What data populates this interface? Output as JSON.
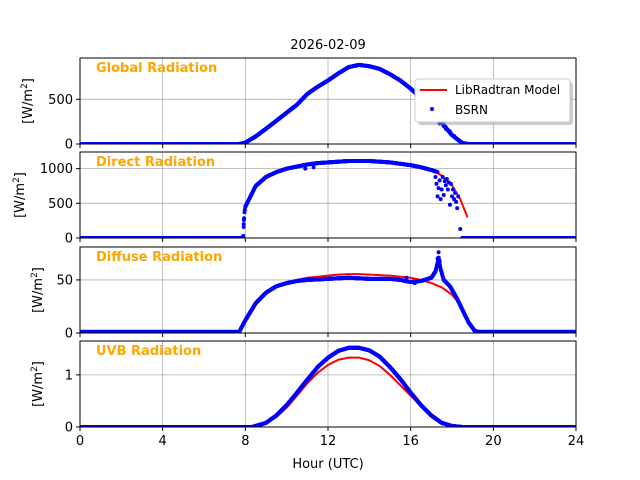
{
  "chart_data": {
    "type": "line",
    "title": "2026-02-09",
    "xlabel": "Hour (UTC)",
    "xlim": [
      0,
      24
    ],
    "xticks": [
      0,
      4,
      8,
      12,
      16,
      20,
      24
    ],
    "xtick_labels": [
      "0",
      "4",
      "8",
      "12",
      "16",
      "20",
      "24"
    ],
    "grid": true,
    "legend": {
      "placement": "upper-right of first panel",
      "entries": [
        {
          "label": "LibRadtran Model",
          "style": "line",
          "color": "#ff0000"
        },
        {
          "label": "BSRN",
          "style": "dots",
          "color": "#0000ff"
        }
      ]
    },
    "panels": [
      {
        "title": "Global Radiation",
        "ylabel": "[W/m2]",
        "ylim": [
          0,
          962
        ],
        "yticks": [
          0,
          500
        ],
        "ytick_labels": [
          "0",
          "500"
        ],
        "model": [
          [
            7.8,
            0
          ],
          [
            8,
            15
          ],
          [
            8.5,
            85
          ],
          [
            9,
            170
          ],
          [
            9.5,
            260
          ],
          [
            10,
            350
          ],
          [
            10.5,
            440
          ],
          [
            11,
            555
          ],
          [
            11.5,
            635
          ],
          [
            12,
            705
          ],
          [
            12.5,
            785
          ],
          [
            13,
            855
          ],
          [
            13.5,
            880
          ],
          [
            14,
            865
          ],
          [
            14.5,
            835
          ],
          [
            15,
            775
          ],
          [
            15.5,
            705
          ],
          [
            16,
            615
          ],
          [
            16.5,
            505
          ],
          [
            17,
            375
          ],
          [
            17.5,
            235
          ],
          [
            18,
            95
          ],
          [
            18.5,
            10
          ],
          [
            18.8,
            0
          ]
        ],
        "bsrn": [
          [
            0,
            0
          ],
          [
            7.7,
            0
          ],
          [
            8,
            15
          ],
          [
            8.5,
            85
          ],
          [
            9,
            170
          ],
          [
            9.5,
            260
          ],
          [
            10,
            350
          ],
          [
            10.5,
            440
          ],
          [
            11,
            560
          ],
          [
            11.5,
            640
          ],
          [
            12,
            710
          ],
          [
            12.5,
            790
          ],
          [
            13,
            860
          ],
          [
            13.5,
            885
          ],
          [
            14,
            870
          ],
          [
            14.5,
            840
          ],
          [
            15,
            780
          ],
          [
            15.5,
            710
          ],
          [
            16,
            620
          ],
          [
            16.5,
            510
          ],
          [
            17,
            380
          ],
          [
            17.5,
            240
          ],
          [
            18,
            100
          ],
          [
            18.5,
            10
          ],
          [
            18.8,
            0
          ],
          [
            24,
            0
          ]
        ],
        "bsrn_scatter": [
          [
            17.4,
            230
          ],
          [
            17.6,
            200
          ],
          [
            17.7,
            170
          ],
          [
            17.9,
            140
          ],
          [
            18.1,
            90
          ]
        ]
      },
      {
        "title": "Direct Radiation",
        "ylabel": "[W/m2]",
        "ylim": [
          0,
          1240
        ],
        "yticks": [
          0,
          500,
          1000
        ],
        "ytick_labels": [
          "0",
          "500",
          "1000"
        ],
        "model": [
          [
            7.95,
            350
          ],
          [
            8,
            450
          ],
          [
            8.5,
            750
          ],
          [
            9,
            880
          ],
          [
            9.5,
            950
          ],
          [
            10,
            1000
          ],
          [
            10.5,
            1030
          ],
          [
            11,
            1060
          ],
          [
            11.5,
            1080
          ],
          [
            12,
            1090
          ],
          [
            12.5,
            1100
          ],
          [
            13,
            1110
          ],
          [
            13.5,
            1110
          ],
          [
            14,
            1110
          ],
          [
            14.5,
            1100
          ],
          [
            15,
            1090
          ],
          [
            15.5,
            1070
          ],
          [
            16,
            1050
          ],
          [
            16.5,
            1020
          ],
          [
            17,
            985
          ],
          [
            17.5,
            900
          ],
          [
            18,
            760
          ],
          [
            18.4,
            560
          ],
          [
            18.75,
            300
          ]
        ],
        "bsrn": [
          [
            0,
            0
          ],
          [
            7.85,
            0
          ],
          [
            7.9,
            30
          ],
          [
            7.95,
            350
          ],
          [
            8,
            450
          ],
          [
            8.5,
            750
          ],
          [
            9,
            880
          ],
          [
            9.5,
            950
          ],
          [
            10,
            1000
          ],
          [
            10.5,
            1030
          ],
          [
            11,
            1060
          ],
          [
            11.5,
            1080
          ],
          [
            12,
            1090
          ],
          [
            12.5,
            1100
          ],
          [
            13,
            1110
          ],
          [
            13.5,
            1110
          ],
          [
            14,
            1110
          ],
          [
            14.5,
            1100
          ],
          [
            15,
            1090
          ],
          [
            15.5,
            1070
          ],
          [
            16,
            1050
          ],
          [
            16.5,
            1020
          ],
          [
            17,
            980
          ],
          [
            17.3,
            950
          ]
        ],
        "bsrn_tail": [
          [
            18.5,
            0
          ],
          [
            24,
            0
          ]
        ],
        "bsrn_scatter": [
          [
            7.92,
            200
          ],
          [
            7.93,
            260
          ],
          [
            10.9,
            1000
          ],
          [
            11.3,
            1020
          ],
          [
            17.25,
            780
          ],
          [
            17.3,
            600
          ],
          [
            17.35,
            720
          ],
          [
            17.4,
            830
          ],
          [
            17.45,
            560
          ],
          [
            17.5,
            700
          ],
          [
            17.55,
            880
          ],
          [
            17.6,
            620
          ],
          [
            17.7,
            760
          ],
          [
            17.75,
            850
          ],
          [
            17.8,
            700
          ],
          [
            17.85,
            800
          ],
          [
            17.9,
            480
          ],
          [
            17.95,
            780
          ],
          [
            18.0,
            600
          ],
          [
            18.05,
            700
          ],
          [
            18.1,
            560
          ],
          [
            18.15,
            650
          ],
          [
            18.2,
            520
          ],
          [
            18.25,
            430
          ],
          [
            18.3,
            600
          ],
          [
            18.4,
            130
          ],
          [
            17.65,
            820
          ],
          [
            17.2,
            880
          ]
        ]
      },
      {
        "title": "Diffuse Radiation",
        "ylabel": "[W/m2]",
        "ylim": [
          0,
          81
        ],
        "yticks": [
          0,
          50
        ],
        "ytick_labels": [
          "0",
          "50"
        ],
        "model": [
          [
            7.7,
            0
          ],
          [
            8,
            12
          ],
          [
            8.5,
            28
          ],
          [
            9,
            38
          ],
          [
            9.5,
            44
          ],
          [
            10,
            48
          ],
          [
            10.5,
            50
          ],
          [
            11,
            52
          ],
          [
            11.5,
            53
          ],
          [
            12,
            54
          ],
          [
            12.5,
            55
          ],
          [
            13,
            55.5
          ],
          [
            13.5,
            55.5
          ],
          [
            14,
            55
          ],
          [
            14.5,
            54.5
          ],
          [
            15,
            54
          ],
          [
            15.5,
            53
          ],
          [
            16,
            52
          ],
          [
            16.5,
            50
          ],
          [
            17,
            47
          ],
          [
            17.5,
            43
          ],
          [
            18,
            36
          ],
          [
            18.3,
            29
          ],
          [
            18.6,
            17
          ],
          [
            19,
            3
          ],
          [
            19.2,
            0
          ]
        ],
        "bsrn": [
          [
            0,
            1
          ],
          [
            7.7,
            1
          ],
          [
            8,
            12
          ],
          [
            8.5,
            28
          ],
          [
            9,
            38
          ],
          [
            9.5,
            44
          ],
          [
            10,
            47
          ],
          [
            10.5,
            49
          ],
          [
            11,
            50
          ],
          [
            11.5,
            50.5
          ],
          [
            12,
            51
          ],
          [
            12.5,
            51.5
          ],
          [
            13,
            52
          ],
          [
            13.5,
            51.5
          ],
          [
            14,
            51
          ],
          [
            14.5,
            51
          ],
          [
            15,
            51
          ],
          [
            15.5,
            50
          ],
          [
            16,
            48
          ],
          [
            16.5,
            49
          ],
          [
            17,
            52
          ],
          [
            17.2,
            58
          ],
          [
            17.3,
            66
          ],
          [
            17.35,
            72
          ],
          [
            17.45,
            60
          ],
          [
            17.6,
            50
          ],
          [
            17.9,
            44
          ],
          [
            18.2,
            34
          ],
          [
            18.5,
            22
          ],
          [
            18.8,
            10
          ],
          [
            19.1,
            2
          ],
          [
            19.3,
            1
          ],
          [
            24,
            1
          ]
        ],
        "bsrn_scatter": [
          [
            17.35,
            76
          ],
          [
            17.3,
            70
          ],
          [
            17.4,
            68
          ],
          [
            16.2,
            47
          ],
          [
            15.8,
            52
          ]
        ]
      },
      {
        "title": "UVB Radiation",
        "ylabel": "[W/m2]",
        "ylim": [
          0,
          1.65
        ],
        "yticks": [
          0,
          1
        ],
        "ytick_labels": [
          "0",
          "1"
        ],
        "model": [
          [
            8,
            0
          ],
          [
            8.5,
            0.02
          ],
          [
            9,
            0.07
          ],
          [
            9.5,
            0.19
          ],
          [
            10,
            0.37
          ],
          [
            10.5,
            0.6
          ],
          [
            11,
            0.84
          ],
          [
            11.5,
            1.04
          ],
          [
            12,
            1.19
          ],
          [
            12.5,
            1.29
          ],
          [
            13,
            1.33
          ],
          [
            13.5,
            1.33
          ],
          [
            14,
            1.28
          ],
          [
            14.5,
            1.17
          ],
          [
            15,
            1.0
          ],
          [
            15.5,
            0.8
          ],
          [
            16,
            0.6
          ],
          [
            16.5,
            0.4
          ],
          [
            17,
            0.22
          ],
          [
            17.5,
            0.09
          ],
          [
            18,
            0.02
          ],
          [
            18.5,
            0
          ]
        ],
        "bsrn": [
          [
            0,
            0
          ],
          [
            8.3,
            0
          ],
          [
            8.5,
            0.02
          ],
          [
            9,
            0.08
          ],
          [
            9.5,
            0.22
          ],
          [
            10,
            0.42
          ],
          [
            10.5,
            0.66
          ],
          [
            11,
            0.91
          ],
          [
            11.5,
            1.15
          ],
          [
            12,
            1.33
          ],
          [
            12.5,
            1.46
          ],
          [
            13,
            1.52
          ],
          [
            13.5,
            1.52
          ],
          [
            14,
            1.47
          ],
          [
            14.5,
            1.35
          ],
          [
            15,
            1.15
          ],
          [
            15.5,
            0.92
          ],
          [
            16,
            0.66
          ],
          [
            16.5,
            0.42
          ],
          [
            17,
            0.22
          ],
          [
            17.5,
            0.08
          ],
          [
            18,
            0.02
          ],
          [
            18.5,
            0
          ],
          [
            24,
            0
          ]
        ],
        "bsrn_scatter": []
      }
    ]
  }
}
